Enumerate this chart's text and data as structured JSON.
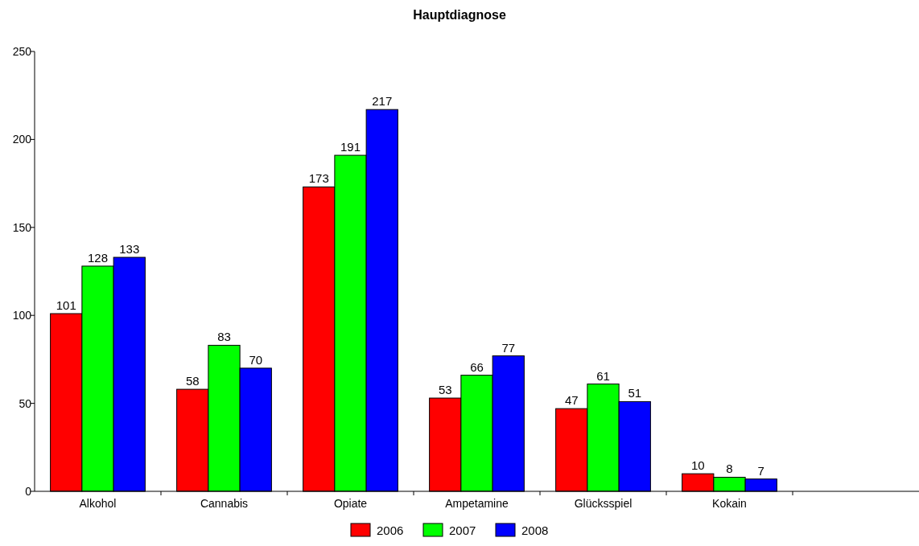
{
  "chart_data": {
    "type": "bar",
    "title": "Hauptdiagnose",
    "categories": [
      "Alkohol",
      "Cannabis",
      "Opiate",
      "Ampetamine",
      "Glücksspiel",
      "Kokain",
      null
    ],
    "series": [
      {
        "name": "2006",
        "color": "#ff0000",
        "values": [
          101,
          58,
          173,
          53,
          47,
          10,
          null
        ]
      },
      {
        "name": "2007",
        "color": "#00ff00",
        "values": [
          128,
          83,
          191,
          66,
          61,
          8,
          null
        ]
      },
      {
        "name": "2008",
        "color": "#0000ff",
        "values": [
          133,
          70,
          217,
          77,
          51,
          7,
          null
        ]
      }
    ],
    "ylim": [
      0,
      250
    ],
    "yticks": [
      0,
      50,
      100,
      150,
      200,
      250
    ],
    "grid": false,
    "legend": "bottom",
    "data_labels": true
  }
}
